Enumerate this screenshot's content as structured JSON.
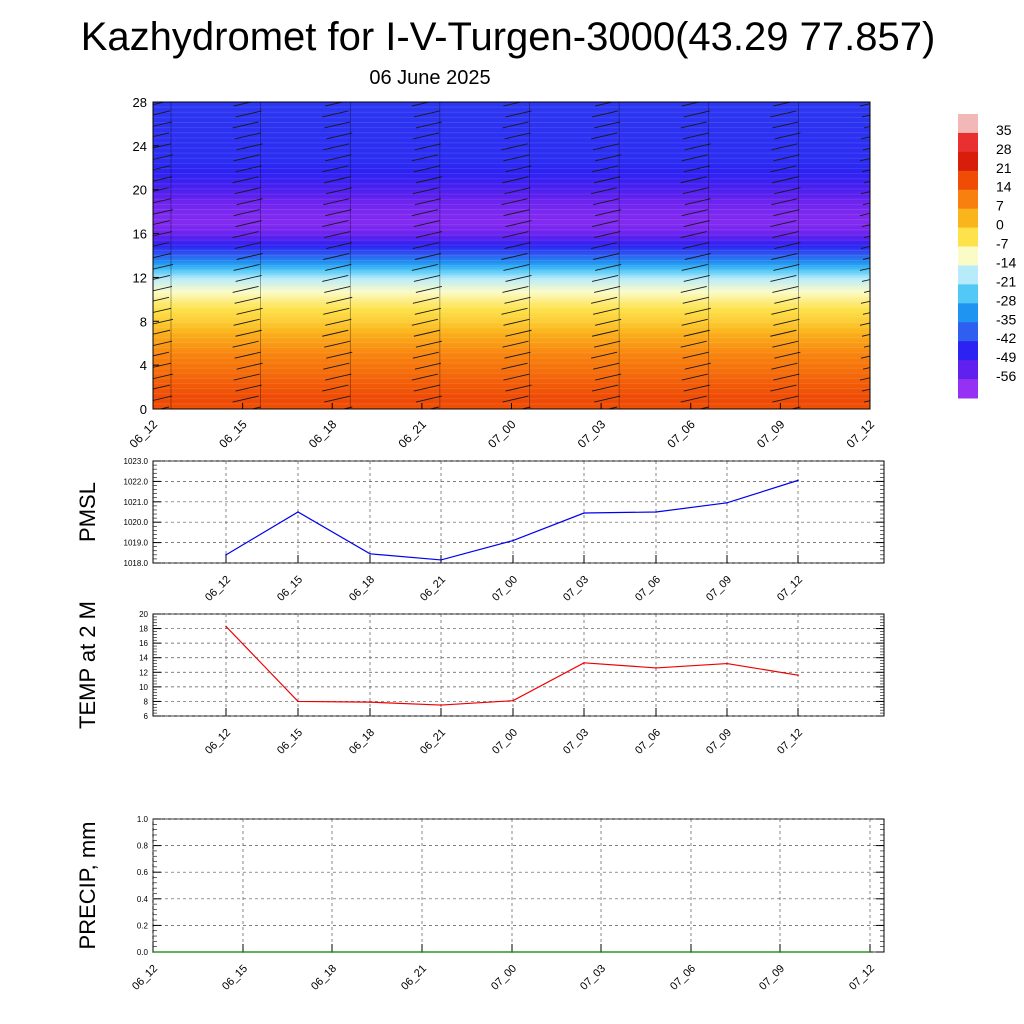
{
  "title": "Kazhydromet for I-V-Turgen-3000(43.29 77.857)",
  "subtitle": "06 June 2025",
  "chart_data": [
    {
      "type": "heatmap",
      "title": "",
      "xlabel": "",
      "ylabel": "",
      "x_ticks": [
        "06_12",
        "06_15",
        "06_18",
        "06_21",
        "07_00",
        "07_03",
        "07_06",
        "07_09",
        "07_12"
      ],
      "y_ticks": [
        0,
        4,
        8,
        12,
        16,
        20,
        24,
        28
      ],
      "ylim": [
        0,
        28
      ],
      "levels": [
        0,
        1,
        2,
        3,
        4,
        5,
        6,
        7,
        8,
        9,
        10,
        11,
        12,
        13,
        14,
        16,
        17,
        18,
        19,
        20,
        21,
        22,
        23,
        24,
        28
      ],
      "values_by_level": [
        17,
        18,
        16,
        14,
        12,
        10,
        7,
        4,
        0,
        -3,
        -7,
        -12,
        -18,
        -28,
        -38,
        -54,
        -57,
        -56,
        -54,
        -50,
        -47,
        -45,
        -44,
        -44,
        -43
      ],
      "overlay": "wind barbs at each time step and height",
      "colorbar": {
        "labels": [
          35,
          28,
          21,
          14,
          7,
          0,
          -7,
          -14,
          -21,
          -28,
          -35,
          -42,
          -49,
          -56
        ],
        "colors": [
          "#f2b8b8",
          "#e83030",
          "#d81d0a",
          "#ef4d06",
          "#f8800e",
          "#fbb51c",
          "#fde24b",
          "#fbfbc8",
          "#b8ebfa",
          "#52c8f6",
          "#1f95f1",
          "#2e5ff0",
          "#2c22f2",
          "#6020ee",
          "#9630f2"
        ]
      }
    },
    {
      "type": "line",
      "ylabel": "PMSL",
      "x": [
        "06_12",
        "06_15",
        "06_18",
        "06_21",
        "07_00",
        "07_03",
        "07_06",
        "07_09",
        "07_12"
      ],
      "series": [
        {
          "values": [
            1018.4,
            1020.5,
            1018.45,
            1018.15,
            1019.1,
            1020.45,
            1020.5,
            1020.95,
            1022.05
          ],
          "color": "#0000ee"
        }
      ],
      "ylim": [
        1018,
        1023
      ],
      "y_ticks": [
        "1018.0",
        "1019.0",
        "1020.0",
        "1021.0",
        "1022.0",
        "1023.0"
      ],
      "grid": true
    },
    {
      "type": "line",
      "ylabel": "TEMP at 2 M",
      "x": [
        "06_12",
        "06_15",
        "06_18",
        "06_21",
        "07_00",
        "07_03",
        "07_06",
        "07_09",
        "07_12"
      ],
      "series": [
        {
          "values": [
            18.3,
            8.0,
            7.9,
            7.5,
            8.1,
            13.3,
            12.6,
            13.2,
            11.6
          ],
          "color": "#ee0000"
        }
      ],
      "ylim": [
        6,
        20
      ],
      "y_ticks": [
        "6",
        "8",
        "10",
        "12",
        "14",
        "16",
        "18",
        "20"
      ],
      "grid": true
    },
    {
      "type": "line",
      "ylabel": "PRECIP, mm",
      "x_ticks": [
        "06_12",
        "06_15",
        "06_18",
        "06_21",
        "07_00",
        "07_03",
        "07_06",
        "07_09",
        "07_12"
      ],
      "series": [
        {
          "values": [
            0,
            0,
            0,
            0,
            0,
            0,
            0,
            0,
            0
          ],
          "color": "#008000"
        }
      ],
      "ylim": [
        0,
        1
      ],
      "y_ticks": [
        "0.0",
        "0.2",
        "0.4",
        "0.6",
        "0.8",
        "1.0"
      ],
      "grid": true
    }
  ]
}
